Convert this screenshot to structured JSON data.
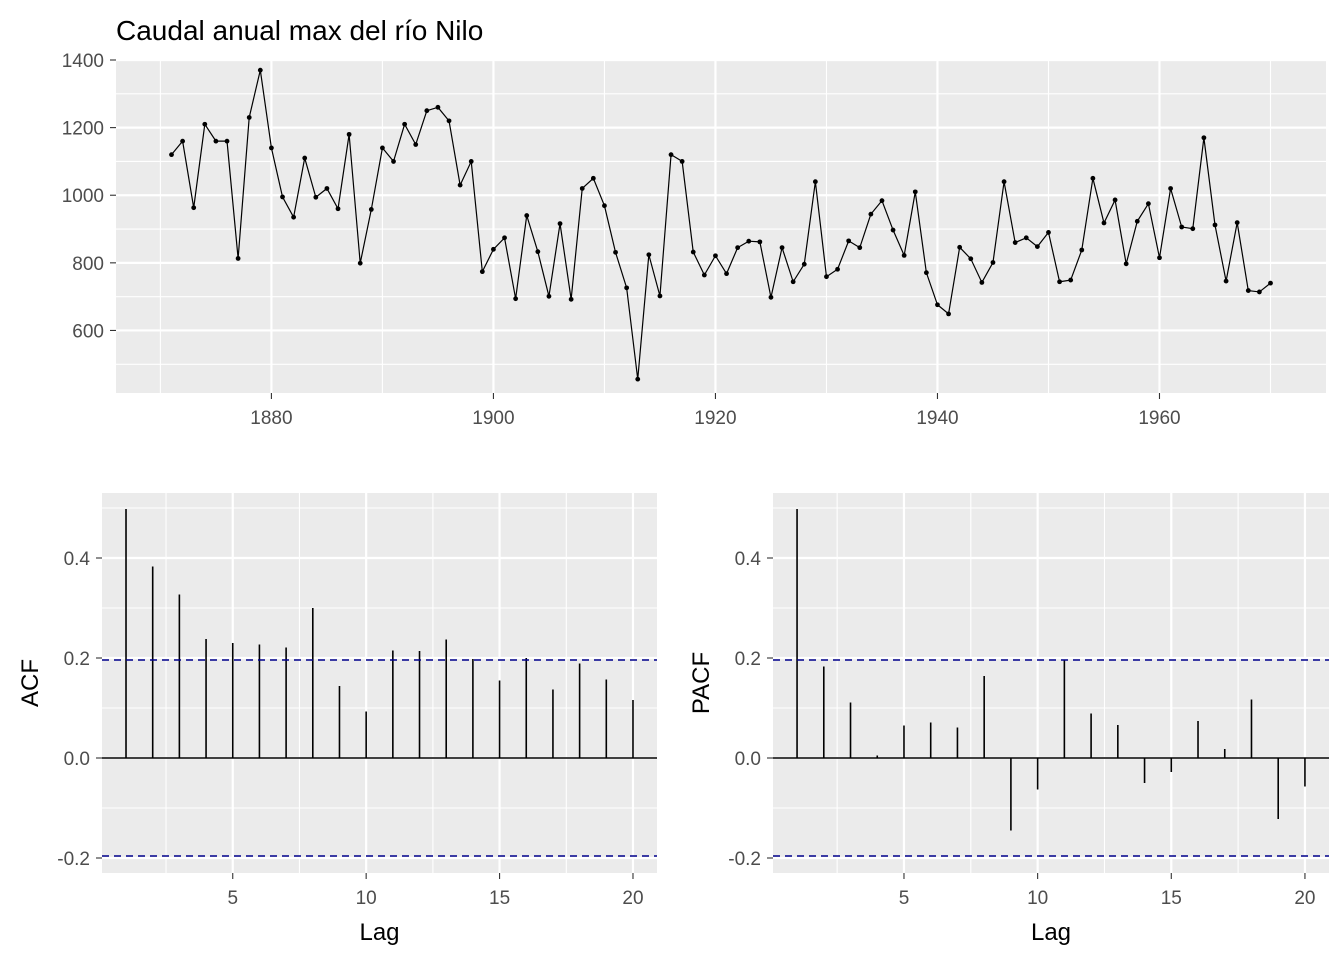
{
  "chart_data": [
    {
      "type": "line",
      "title": "Caudal anual max del río Nilo",
      "xlabel": "",
      "ylabel": "",
      "xlim": [
        1866,
        1975
      ],
      "ylim": [
        415,
        1400
      ],
      "x_ticks": [
        1880,
        1900,
        1920,
        1940,
        1960
      ],
      "y_ticks": [
        600,
        800,
        1000,
        1200,
        1400
      ],
      "grid": true,
      "points": true,
      "x": [
        1871,
        1872,
        1873,
        1874,
        1875,
        1876,
        1877,
        1878,
        1879,
        1880,
        1881,
        1882,
        1883,
        1884,
        1885,
        1886,
        1887,
        1888,
        1889,
        1890,
        1891,
        1892,
        1893,
        1894,
        1895,
        1896,
        1897,
        1898,
        1899,
        1900,
        1901,
        1902,
        1903,
        1904,
        1905,
        1906,
        1907,
        1908,
        1909,
        1910,
        1911,
        1912,
        1913,
        1914,
        1915,
        1916,
        1917,
        1918,
        1919,
        1920,
        1921,
        1922,
        1923,
        1924,
        1925,
        1926,
        1927,
        1928,
        1929,
        1930,
        1931,
        1932,
        1933,
        1934,
        1935,
        1936,
        1937,
        1938,
        1939,
        1940,
        1941,
        1942,
        1943,
        1944,
        1945,
        1946,
        1947,
        1948,
        1949,
        1950,
        1951,
        1952,
        1953,
        1954,
        1955,
        1956,
        1957,
        1958,
        1959,
        1960,
        1961,
        1962,
        1963,
        1964,
        1965,
        1966,
        1967,
        1968,
        1969,
        1970
      ],
      "values": [
        1120,
        1160,
        963,
        1210,
        1160,
        1160,
        813,
        1230,
        1370,
        1140,
        995,
        935,
        1110,
        994,
        1020,
        960,
        1180,
        799,
        958,
        1140,
        1100,
        1210,
        1150,
        1250,
        1260,
        1220,
        1030,
        1100,
        774,
        840,
        874,
        694,
        940,
        833,
        701,
        916,
        692,
        1020,
        1050,
        969,
        831,
        726,
        456,
        824,
        702,
        1120,
        1100,
        832,
        764,
        821,
        768,
        845,
        864,
        862,
        698,
        845,
        744,
        796,
        1040,
        759,
        781,
        865,
        845,
        944,
        984,
        897,
        822,
        1010,
        771,
        676,
        649,
        846,
        812,
        742,
        801,
        1040,
        860,
        874,
        848,
        890,
        744,
        749,
        838,
        1050,
        918,
        986,
        797,
        923,
        975,
        815,
        1020,
        906,
        901,
        1170,
        912,
        746,
        919,
        718,
        714,
        740
      ]
    },
    {
      "type": "bar",
      "xlabel": "Lag",
      "ylabel": "ACF",
      "xlim": [
        0.1,
        20.9
      ],
      "ylim": [
        -0.23,
        0.53
      ],
      "x_ticks": [
        5,
        10,
        15,
        20
      ],
      "y_ticks": [
        -0.2,
        0.0,
        0.2,
        0.4
      ],
      "y_tick_labels": [
        "-0.2",
        "0.0",
        "0.2",
        "0.4"
      ],
      "confidence_band": [
        -0.196,
        0.196
      ],
      "lags": [
        1,
        2,
        3,
        4,
        5,
        6,
        7,
        8,
        9,
        10,
        11,
        12,
        13,
        14,
        15,
        16,
        17,
        18,
        19,
        20
      ],
      "values": [
        0.498,
        0.383,
        0.327,
        0.238,
        0.23,
        0.227,
        0.221,
        0.3,
        0.144,
        0.093,
        0.215,
        0.214,
        0.237,
        0.198,
        0.155,
        0.2,
        0.137,
        0.189,
        0.157,
        0.116
      ]
    },
    {
      "type": "bar",
      "xlabel": "Lag",
      "ylabel": "PACF",
      "xlim": [
        0.1,
        20.9
      ],
      "ylim": [
        -0.23,
        0.53
      ],
      "x_ticks": [
        5,
        10,
        15,
        20
      ],
      "y_ticks": [
        -0.2,
        0.0,
        0.2,
        0.4
      ],
      "y_tick_labels": [
        "-0.2",
        "0.0",
        "0.2",
        "0.4"
      ],
      "confidence_band": [
        -0.196,
        0.196
      ],
      "lags": [
        1,
        2,
        3,
        4,
        5,
        6,
        7,
        8,
        9,
        10,
        11,
        12,
        13,
        14,
        15,
        16,
        17,
        18,
        19,
        20
      ],
      "values": [
        0.498,
        0.183,
        0.111,
        0.005,
        0.065,
        0.071,
        0.061,
        0.164,
        -0.145,
        -0.063,
        0.196,
        0.089,
        0.066,
        -0.05,
        -0.028,
        0.074,
        0.018,
        0.117,
        -0.122,
        -0.057
      ]
    }
  ]
}
